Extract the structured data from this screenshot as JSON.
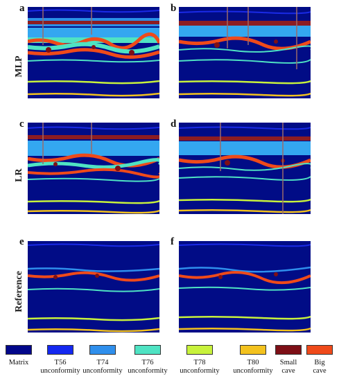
{
  "panels": {
    "a": "a",
    "b": "b",
    "c": "c",
    "d": "d",
    "e": "e",
    "f": "f"
  },
  "rows": {
    "mlp": "MLP",
    "lr": "LR",
    "reference": "Reference"
  },
  "legend": [
    {
      "key": "matrix",
      "line1": "Matrix",
      "line2": "",
      "color": "#02078a"
    },
    {
      "key": "t56",
      "line1": "T56",
      "line2": "unconformity",
      "color": "#1428f0"
    },
    {
      "key": "t74",
      "line1": "T74",
      "line2": "unconformity",
      "color": "#2f8fec"
    },
    {
      "key": "t76",
      "line1": "T76",
      "line2": "unconformity",
      "color": "#4fe3c3"
    },
    {
      "key": "t78",
      "line1": "T78",
      "line2": "unconformity",
      "color": "#c8f23c"
    },
    {
      "key": "t80",
      "line1": "T80",
      "line2": "unconformity",
      "color": "#f3c21e"
    },
    {
      "key": "small_cave",
      "line1": "Small",
      "line2": "cave",
      "color": "#7d0f16"
    },
    {
      "key": "big_cave",
      "line1": "Big",
      "line2": "cave",
      "color": "#ef4a1a"
    }
  ]
}
